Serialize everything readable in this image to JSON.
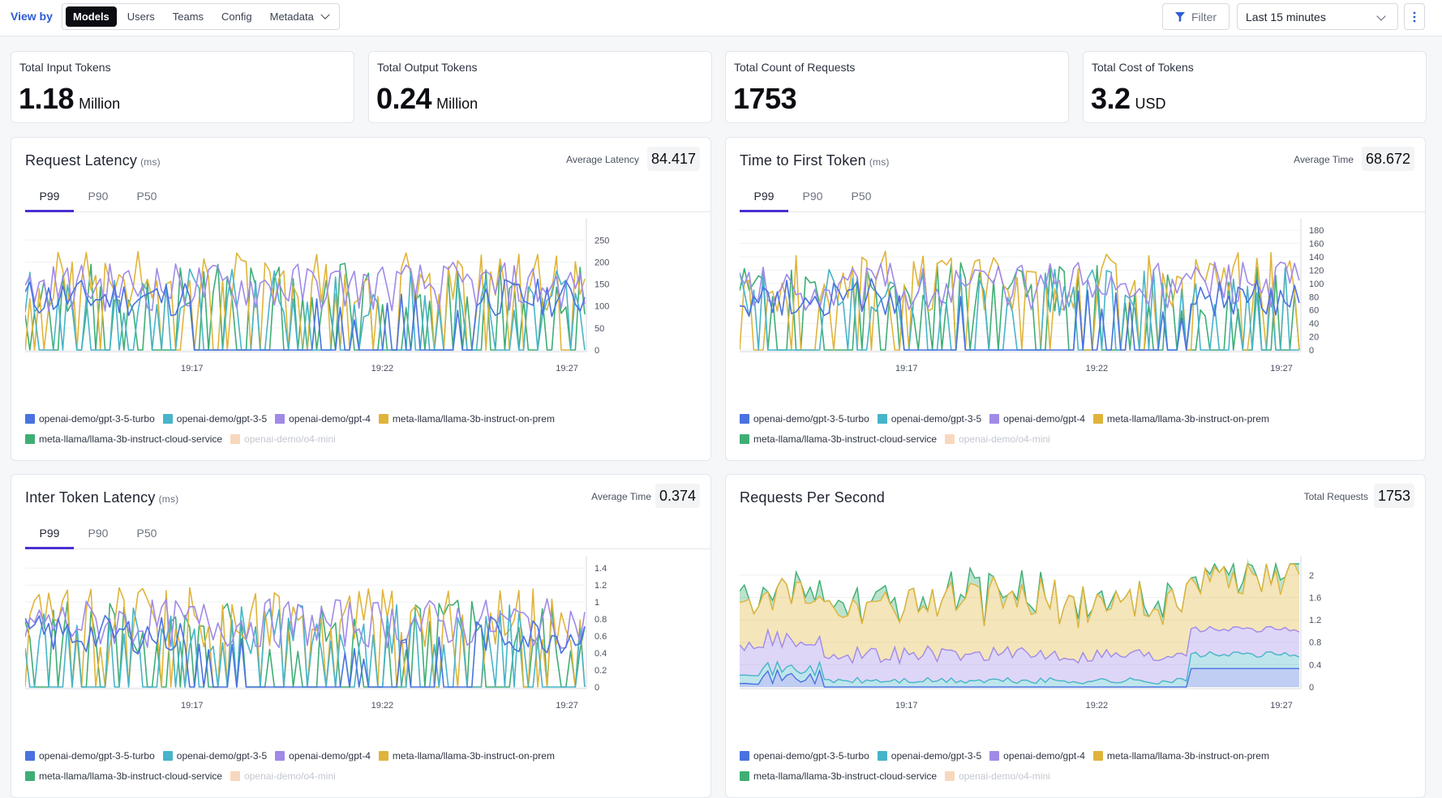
{
  "toolbar": {
    "view_by_label": "View by",
    "segments": [
      "Models",
      "Users",
      "Teams",
      "Config",
      "Metadata"
    ],
    "active_segment": "Models",
    "filter_label": "Filter",
    "time_range": "Last 15 minutes"
  },
  "stats": [
    {
      "label": "Total Input Tokens",
      "value": "1.18",
      "unit": "Million"
    },
    {
      "label": "Total Output Tokens",
      "value": "0.24",
      "unit": "Million"
    },
    {
      "label": "Total Count of Requests",
      "value": "1753",
      "unit": ""
    },
    {
      "label": "Total Cost of Tokens",
      "value": "3.2",
      "unit": "USD"
    }
  ],
  "legend": [
    {
      "name": "openai-demo/gpt-3-5-turbo",
      "color": "#4a72e0",
      "muted": false
    },
    {
      "name": "openai-demo/gpt-3-5",
      "color": "#47b4c9",
      "muted": false
    },
    {
      "name": "openai-demo/gpt-4",
      "color": "#a08ae8",
      "muted": false
    },
    {
      "name": "meta-llama/llama-3b-instruct-on-prem",
      "color": "#e0b43a",
      "muted": false
    },
    {
      "name": "meta-llama/llama-3b-instruct-cloud-service",
      "color": "#3fae74",
      "muted": false
    },
    {
      "name": "openai-demo/o4-mini",
      "color": "#f7d8bd",
      "muted": true
    }
  ],
  "tab_labels": [
    "P99",
    "P90",
    "P50"
  ],
  "cards": {
    "request_latency": {
      "title": "Request Latency",
      "unit": "(ms)",
      "avg_label": "Average Latency",
      "avg_value": "84.417",
      "active_tab": "P99",
      "chart_data": {
        "type": "line",
        "x_ticks": [
          "19:17",
          "19:22",
          "19:27"
        ],
        "y_ticks": [
          "0",
          "50",
          "100",
          "150",
          "200",
          "250"
        ],
        "ylim": [
          0,
          280
        ],
        "seed": 11,
        "peak": 250,
        "grid": true
      }
    },
    "ttft": {
      "title": "Time to First Token",
      "unit": "(ms)",
      "avg_label": "Average Time",
      "avg_value": "68.672",
      "active_tab": "P99",
      "chart_data": {
        "type": "line",
        "x_ticks": [
          "19:17",
          "19:22",
          "19:27"
        ],
        "y_ticks": [
          "0",
          "20",
          "40",
          "60",
          "80",
          "100",
          "120",
          "140",
          "160",
          "180"
        ],
        "ylim": [
          0,
          185
        ],
        "seed": 27,
        "peak": 165,
        "grid": true
      }
    },
    "inter_token": {
      "title": "Inter Token Latency",
      "unit": "(ms)",
      "avg_label": "Average Time",
      "avg_value": "0.374",
      "active_tab": "P99",
      "chart_data": {
        "type": "line",
        "x_ticks": [
          "19:17",
          "19:22",
          "19:27"
        ],
        "y_ticks": [
          "0",
          "0.2",
          "0.4",
          "0.6",
          "0.8",
          "1",
          "1.2",
          "1.4"
        ],
        "ylim": [
          0,
          1.45
        ],
        "seed": 43,
        "peak": 1.3,
        "grid": true
      }
    },
    "rps": {
      "title": "Requests Per Second",
      "avg_label": "Total Requests",
      "avg_value": "1753",
      "chart_data": {
        "type": "area",
        "stacked": true,
        "x_ticks": [
          "19:17",
          "19:22",
          "19:27"
        ],
        "y_ticks": [
          "0",
          "0.4",
          "0.8",
          "1.2",
          "1.6",
          "2"
        ],
        "ylim": [
          0,
          2.2
        ],
        "grid": true
      }
    }
  }
}
